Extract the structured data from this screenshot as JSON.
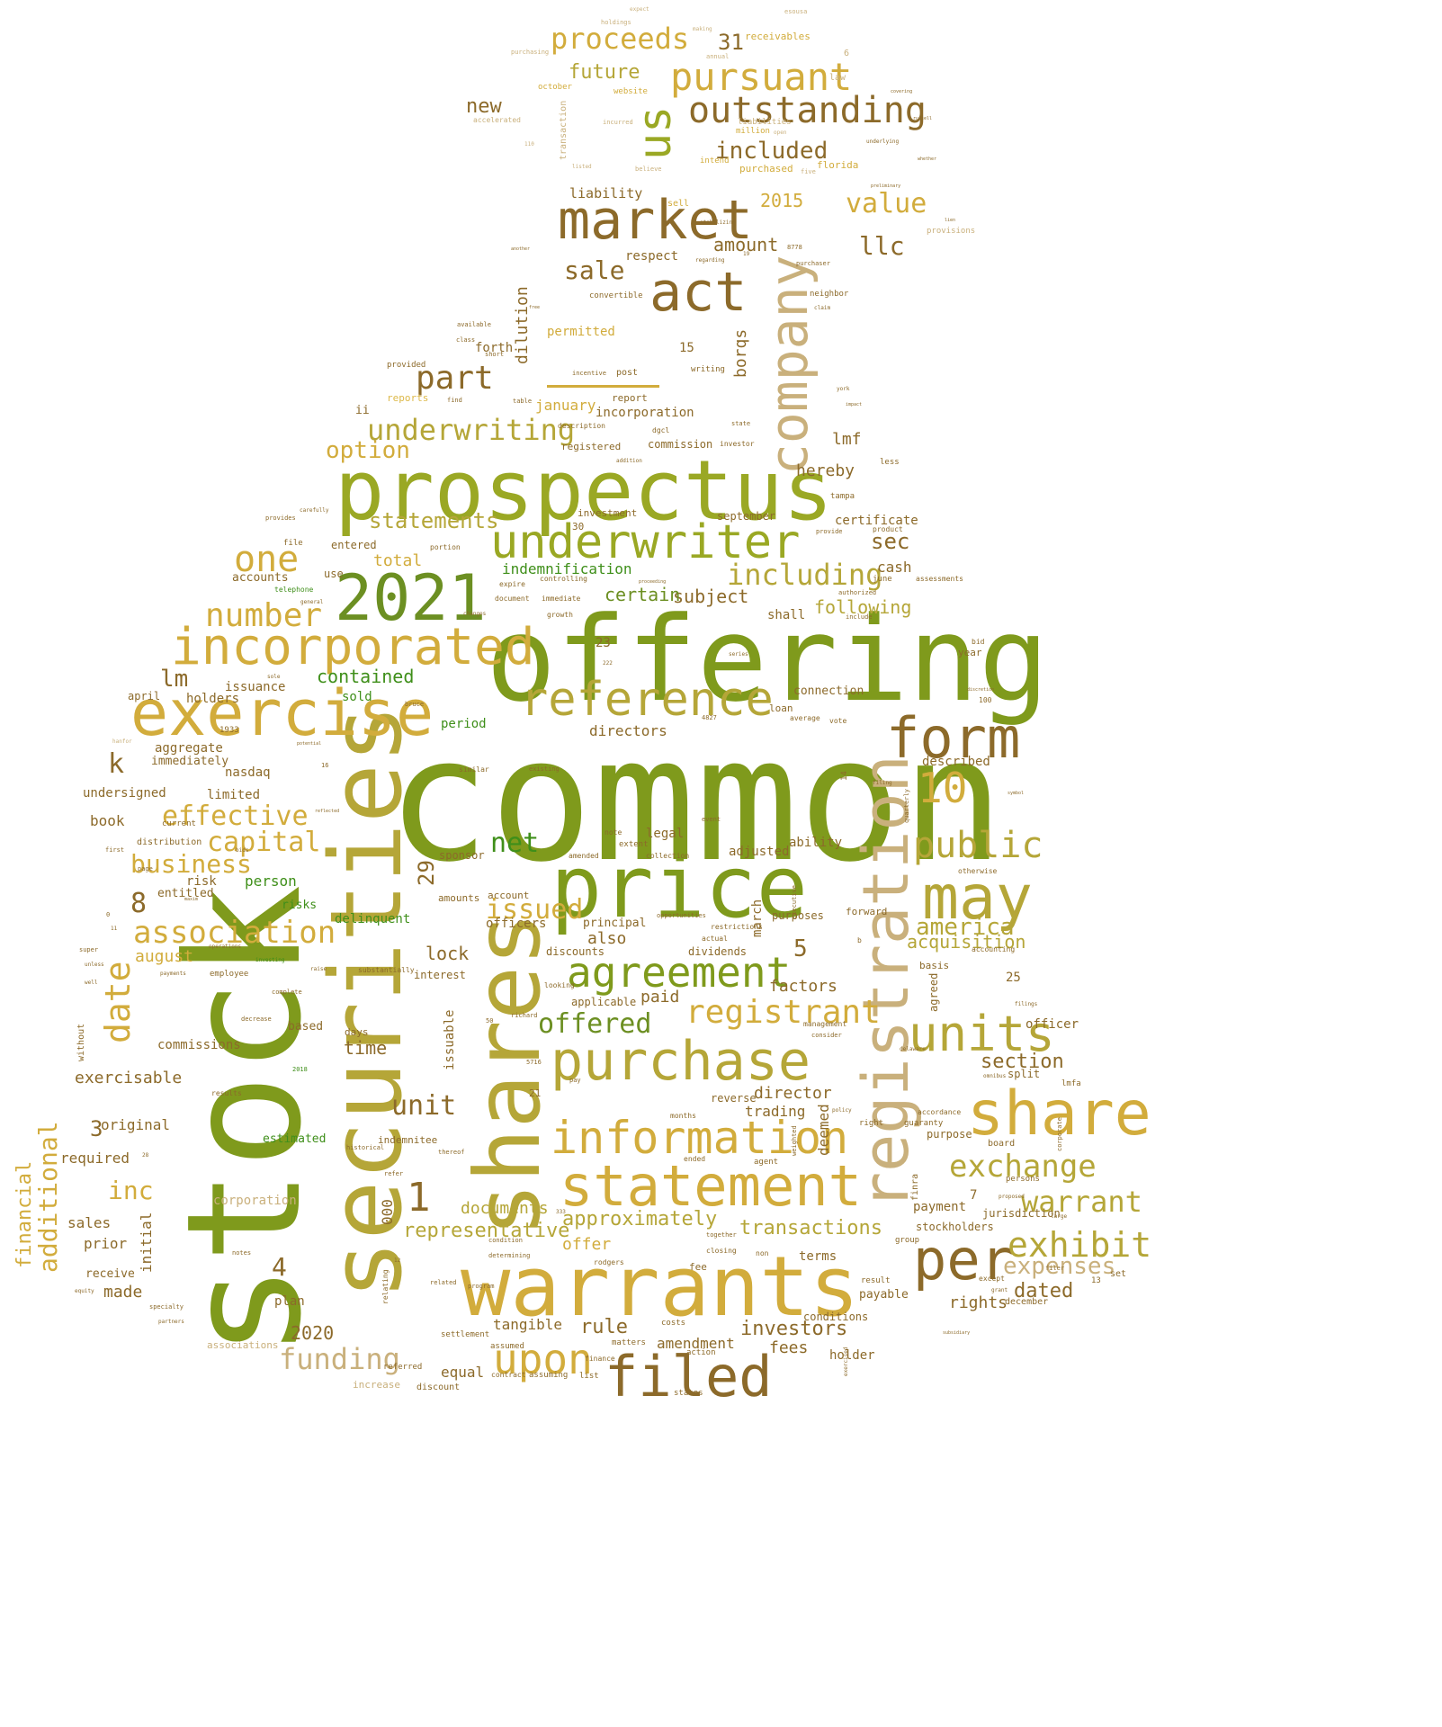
{
  "colors": {
    "olive": "#7f9a1c",
    "yellowgreen": "#9aa824",
    "mustard": "#b5a638",
    "gold": "#d2ac3c",
    "tan": "#c9b07c",
    "brown": "#8c6a2a",
    "green": "#3f8f1a",
    "lightgold": "#ddb94a"
  },
  "words": {
    "common": "common",
    "stock": "stock",
    "offering": "offering",
    "securities": "securities",
    "shares": "shares",
    "prospectus": "prospectus",
    "price": "price",
    "warrants": "warrants",
    "registration": "registration",
    "exercise": "exercise",
    "market": "market",
    "company": "company",
    "incorporated": "incorporated",
    "y2021": "2021",
    "underwriter": "underwriter",
    "reference": "reference",
    "act": "act",
    "share": "share",
    "statement": "statement",
    "purchase": "purchase",
    "information": "information",
    "may": "may",
    "per": "per",
    "form": "form",
    "agreement": "agreement",
    "filed": "filed",
    "upon": "upon",
    "units": "units",
    "outstanding": "outstanding",
    "pursuant": "pursuant",
    "us": "us",
    "proceeds": "proceeds",
    "underwriting": "underwriting",
    "association": "association",
    "registrant": "registrant",
    "public": "public",
    "exhibit": "exhibit",
    "exchange": "exchange",
    "warrant": "warrant",
    "n10": "10",
    "one": "one",
    "number": "number",
    "including": "including",
    "included": "included",
    "value": "value",
    "part": "part",
    "statements": "statements",
    "offered": "offered",
    "effective": "effective",
    "capital": "capital",
    "business": "business",
    "date": "date",
    "funding": "funding",
    "additional": "additional",
    "future": "future",
    "sale": "sale",
    "llc": "llc",
    "n2015": "2015",
    "n31": "31",
    "new": "new",
    "amount": "amount",
    "option": "option",
    "sec": "sec",
    "net": "net",
    "issued": "issued",
    "unit": "unit",
    "inc": "inc",
    "approximately": "approximately",
    "representative": "representative",
    "transactions": "transactions",
    "investors": "investors",
    "expenses": "expenses",
    "dated": "dated",
    "section": "section",
    "america": "america",
    "acquisition": "acquisition",
    "n2020": "2020",
    "n1": "1",
    "n8": "8",
    "n5": "5",
    "n4": "4",
    "n3": "3",
    "n29": "29",
    "lm": "lm",
    "k": "k",
    "contained": "contained",
    "following": "following",
    "subject": "subject",
    "certain": "certain",
    "indemnification": "indemnification",
    "total": "total",
    "dilution": "dilution",
    "borqs": "borqs",
    "liability": "liability",
    "respect": "respect",
    "permitted": "permitted",
    "forth": "forth",
    "january": "january",
    "incorporation": "incorporation",
    "lmf": "lmf",
    "hereby": "hereby",
    "cash": "cash",
    "certificate": "certificate",
    "rule": "rule",
    "fees": "fees",
    "amendment": "amendment",
    "documents": "documents",
    "equal": "equal",
    "tangible": "tangible",
    "offer": "offer",
    "rights": "rights",
    "payment": "payment",
    "lock": "lock",
    "also": "also",
    "paid": "paid",
    "factors": "factors",
    "time": "time",
    "director": "director",
    "trading": "trading",
    "deemed": "deemed",
    "exercisable": "exercisable",
    "commissions": "commissions",
    "original": "original",
    "required": "required",
    "sales": "sales",
    "prior": "prior",
    "made": "made",
    "receive": "receive",
    "plan": "plan",
    "initial": "initial",
    "financial": "financial",
    "corporation": "corporation",
    "book": "book",
    "undersigned": "undersigned",
    "limited": "limited",
    "nasdaq": "nasdaq",
    "aggregate": "aggregate",
    "immediately": "immediately",
    "holders": "holders",
    "april": "april",
    "issuance": "issuance",
    "august": "august",
    "risk": "risk",
    "entitled": "entitled",
    "person": "person",
    "risks": "risks",
    "delinquent": "delinquent",
    "officers": "officers",
    "principal": "principal",
    "discounts": "discounts",
    "dividends": "dividends",
    "march": "march",
    "purposes": "purposes",
    "adjusted": "adjusted",
    "ability": "ability",
    "legal": "legal",
    "directors": "directors",
    "period": "period",
    "sold": "sold",
    "described": "described",
    "shall": "shall",
    "use": "use",
    "accounts": "accounts",
    "entered": "entered",
    "officer": "officer",
    "split": "split",
    "purpose": "purpose",
    "terms": "terms",
    "conditions": "conditions",
    "holder": "holder",
    "payable": "payable",
    "stockholders": "stockholders",
    "jurisdiction": "jurisdiction",
    "connection": "connection",
    "loan": "loan",
    "year": "year",
    "based": "based",
    "days": "days",
    "interest": "interest",
    "issuable": "issuable",
    "estimated": "estimated",
    "indemnitee": "indemnitee",
    "sponsor": "sponsor",
    "amounts": "amounts",
    "account": "account",
    "applicable": "applicable",
    "reverse": "reverse",
    "forward": "forward",
    "basis": "basis",
    "agreed": "agreed",
    "n25": "25",
    "n7": "7",
    "n15": "15",
    "n23": "23",
    "n000": "000",
    "n21": "21",
    "n30": "30",
    "ii": "ii",
    "reports": "reports",
    "report": "report",
    "commission": "commission",
    "registered": "registered",
    "investment": "investment",
    "september": "september",
    "tampa": "tampa",
    "less": "less",
    "june": "june",
    "post": "post",
    "writing": "writing",
    "provided": "provided",
    "receivables": "receivables",
    "website": "website",
    "october": "october",
    "transaction": "transaction",
    "florida": "florida",
    "purchased": "purchased",
    "intend": "intend",
    "million": "million",
    "sell": "sell",
    "convertible": "convertible",
    "neighbor": "neighbor",
    "law": "law",
    "n6": "6",
    "provisions": "provisions",
    "liabilities": "liabilities",
    "settlement": "settlement",
    "assumed": "assumed",
    "action": "action",
    "costs": "costs",
    "associations": "associations",
    "increase": "increase",
    "discount": "discount",
    "states": "states",
    "referred": "referred",
    "matters": "matters",
    "contract": "contract",
    "assuming": "assuming",
    "list": "list",
    "finance": "finance",
    "december": "december",
    "set": "set",
    "result": "result",
    "n13": "13",
    "group": "group",
    "board": "board",
    "persons": "persons",
    "guaranty": "guaranty",
    "right": "right",
    "assessments": "assessments",
    "telephone": "telephone",
    "controlling": "controlling",
    "document": "document",
    "immediate": "immediate",
    "growth": "growth",
    "portion": "portion",
    "file": "file",
    "expire": "expire",
    "n1933": "1933",
    "employee": "employee",
    "results": "results",
    "without": "without",
    "extent": "extent",
    "note": "note",
    "amended": "amended",
    "collection": "collection",
    "event": "event",
    "restrictions": "restrictions",
    "opportunities": "opportunities",
    "actual": "actual",
    "accounting": "accounting",
    "substantially": "substantially",
    "looking": "looking",
    "management": "management",
    "consider": "consider",
    "vote": "vote",
    "average": "average",
    "bid": "bid",
    "n100": "100",
    "n14": "14",
    "months": "months",
    "ended": "ended",
    "closing": "closing",
    "agent": "agent",
    "fee": "fee",
    "non": "non",
    "relating": "relating",
    "rodgers": "rodgers",
    "n2018": "2018",
    "similar": "similar",
    "existing": "existing",
    "richard": "richard",
    "n5716": "5716",
    "n4827": "4827",
    "n222": "222",
    "n8778": "8778",
    "n16": "16",
    "description": "description",
    "find": "find",
    "table": "table",
    "dgcl": "dgcl",
    "investor": "investor",
    "state": "state",
    "incentive": "incentive",
    "available": "available",
    "class": "class",
    "short": "short",
    "product": "product",
    "provide": "provide",
    "authorized": "authorized",
    "include": "include",
    "purchaser": "purchaser",
    "claim": "claim",
    "regarding": "regarding",
    "holdings": "holdings",
    "making": "making",
    "annual": "annual",
    "purchasing": "purchasing",
    "accelerated": "accelerated",
    "incurred": "incurred",
    "listed": "listed",
    "believe": "believe",
    "open": "open",
    "five": "five",
    "esousa": "esousa",
    "expect": "expect",
    "n110": "110",
    "filer": "filer",
    "equity": "equity",
    "specialty": "specialty",
    "partners": "partners",
    "notes": "notes",
    "proposed": "proposed",
    "large": "large",
    "except": "except",
    "grant": "grant",
    "weighted": "weighted",
    "policy": "policy",
    "quarterly": "quarterly",
    "exercised": "exercised",
    "filings": "filings",
    "bruce": "bruce",
    "finra": "finra",
    "lmfa": "lmfa",
    "corporate": "corporate",
    "accordance": "accordance",
    "otherwise": "otherwise",
    "executive": "executive",
    "hanfor": "hanfor",
    "delaware": "delaware",
    "pay": "pay",
    "omnibus": "omnibus",
    "n50": "50",
    "n28": "28",
    "n11": "11",
    "n0": "0",
    "b": "b",
    "raise": "raise",
    "complete": "complete",
    "decrease": "decrease",
    "distribution": "distribution",
    "current": "current",
    "first": "first",
    "page": "page",
    "super": "super",
    "unless": "unless",
    "well": "well",
    "payments": "payments",
    "investing": "investing",
    "operations": "operations",
    "maxim": "maxim",
    "bids": "bids",
    "reflected": "reflected",
    "sole": "sole",
    "potential": "potential",
    "general": "general",
    "thereof": "thereof",
    "historical": "historical",
    "refer": "refer",
    "related": "related",
    "program": "program",
    "condition": "condition",
    "determining": "determining",
    "together": "together",
    "series": "series",
    "changes": "changes",
    "n333": "333",
    "n12": "12",
    "n19": "19",
    "stabilizing": "stabilizing",
    "preliminary": "preliminary",
    "underlying": "underlying",
    "covering": "covering",
    "russell": "russell",
    "whether": "whether",
    "lien": "lien",
    "subsidiary": "subsidiary",
    "symbol": "symbol",
    "filing": "filing",
    "discretion": "discretion",
    "york": "york",
    "impact": "impact",
    "another": "another",
    "free": "free",
    "proceeding": "proceeding",
    "addition": "addition",
    "carefully": "carefully",
    "provides": "provides",
    "days2": "days"
  }
}
